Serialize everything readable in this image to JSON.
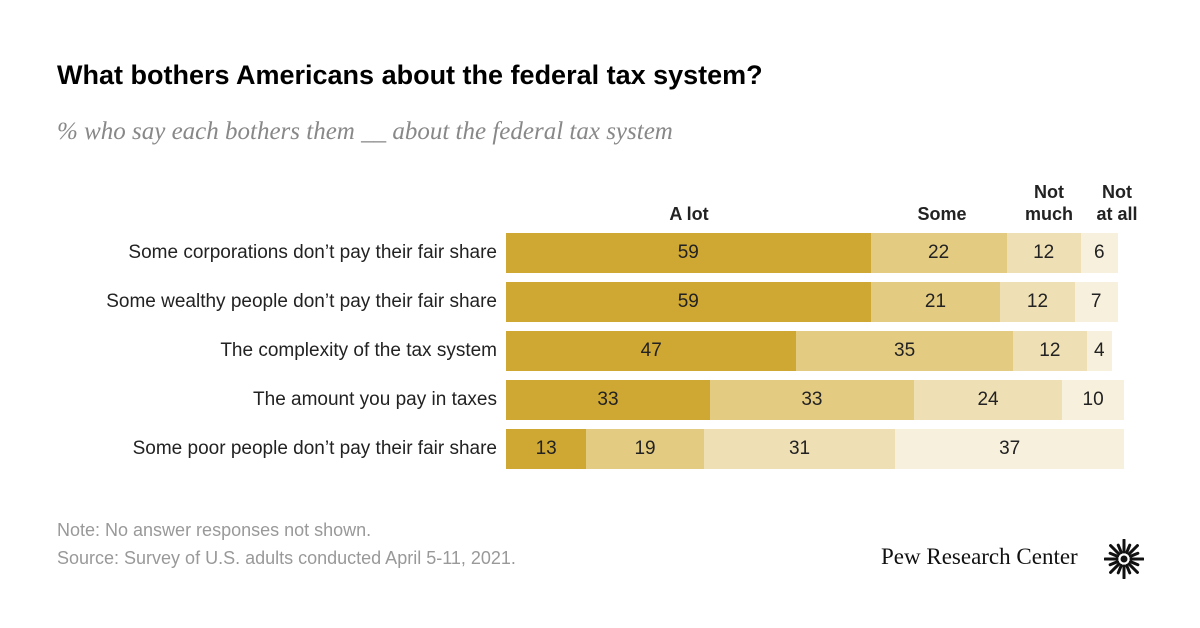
{
  "title": "What bothers Americans about the federal tax system?",
  "subtitle": "% who say each bothers them __ about the federal tax system",
  "chart_data": {
    "type": "bar",
    "orientation": "horizontal",
    "stacked": true,
    "categories": [
      "Some corporations don’t pay their fair share",
      "Some wealthy people don’t pay their fair share",
      "The complexity of the tax system",
      "The amount you pay in taxes",
      "Some poor people don’t pay their fair share"
    ],
    "series": [
      {
        "name": "A lot",
        "header": [
          "A lot"
        ],
        "color": "#cfa733",
        "values": [
          59,
          59,
          47,
          33,
          13
        ]
      },
      {
        "name": "Some",
        "header": [
          "Some"
        ],
        "color": "#e4cb82",
        "values": [
          22,
          21,
          35,
          33,
          19
        ]
      },
      {
        "name": "Not much",
        "header": [
          "Not",
          "much"
        ],
        "color": "#eedfb5",
        "values": [
          12,
          12,
          12,
          24,
          31
        ]
      },
      {
        "name": "Not at all",
        "header": [
          "Not",
          "at all"
        ],
        "color": "#f7f0dc",
        "values": [
          6,
          7,
          4,
          10,
          37
        ]
      }
    ],
    "xlim": [
      0,
      100
    ],
    "grid": false,
    "legend": "column headers above bars"
  },
  "note": "Note: No answer responses not shown.",
  "source": "Source: Survey of U.S. adults conducted April 5-11, 2021.",
  "brand": "Pew Research Center",
  "icons": {
    "logo": "pew-sunburst-icon"
  }
}
